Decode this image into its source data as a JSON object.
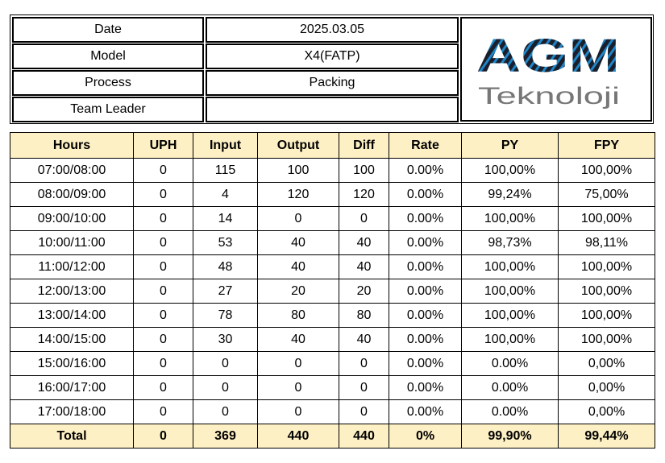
{
  "header": {
    "rows": [
      {
        "label": "Date",
        "value": "2025.03.05"
      },
      {
        "label": "Model",
        "value": "X4(FATP)"
      },
      {
        "label": "Process",
        "value": "Packing"
      },
      {
        "label": "Team Leader",
        "value": ""
      }
    ],
    "logo": {
      "main": "AGM",
      "sub": "Teknoloji",
      "main_color": "#1b1f2b",
      "stripe_color": "#1e86c8",
      "sub_color": "#777777"
    }
  },
  "table": {
    "columns": [
      "Hours",
      "UPH",
      "Input",
      "Output",
      "Diff",
      "Rate",
      "PY",
      "FPY"
    ],
    "rows": [
      [
        "07:00/08:00",
        "0",
        "115",
        "100",
        "100",
        "0.00%",
        "100,00%",
        "100,00%"
      ],
      [
        "08:00/09:00",
        "0",
        "4",
        "120",
        "120",
        "0.00%",
        "99,24%",
        "75,00%"
      ],
      [
        "09:00/10:00",
        "0",
        "14",
        "0",
        "0",
        "0.00%",
        "100,00%",
        "100,00%"
      ],
      [
        "10:00/11:00",
        "0",
        "53",
        "40",
        "40",
        "0.00%",
        "98,73%",
        "98,11%"
      ],
      [
        "11:00/12:00",
        "0",
        "48",
        "40",
        "40",
        "0.00%",
        "100,00%",
        "100,00%"
      ],
      [
        "12:00/13:00",
        "0",
        "27",
        "20",
        "20",
        "0.00%",
        "100,00%",
        "100,00%"
      ],
      [
        "13:00/14:00",
        "0",
        "78",
        "80",
        "80",
        "0.00%",
        "100,00%",
        "100,00%"
      ],
      [
        "14:00/15:00",
        "0",
        "30",
        "40",
        "40",
        "0.00%",
        "100,00%",
        "100,00%"
      ],
      [
        "15:00/16:00",
        "0",
        "0",
        "0",
        "0",
        "0.00%",
        "0.00%",
        "0,00%"
      ],
      [
        "16:00/17:00",
        "0",
        "0",
        "0",
        "0",
        "0.00%",
        "0.00%",
        "0,00%"
      ],
      [
        "17:00/18:00",
        "0",
        "0",
        "0",
        "0",
        "0.00%",
        "0.00%",
        "0,00%"
      ]
    ],
    "total": [
      "Total",
      "0",
      "369",
      "440",
      "440",
      "0%",
      "99,90%",
      "99,44%"
    ],
    "header_bg": "#fdf0c4"
  }
}
